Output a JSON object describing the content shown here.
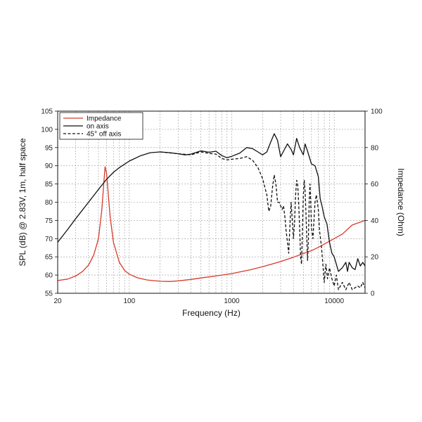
{
  "chart_data": {
    "type": "line",
    "xlabel": "Frequency (Hz)",
    "ylabel": "SPL (dB) @ 2.83V, 1m, half space",
    "y2label": "Impedance (Ohm)",
    "xscale": "log",
    "xlim": [
      20,
      20000
    ],
    "ylim": [
      55,
      105
    ],
    "y2lim": [
      0,
      100
    ],
    "x_tick_labels": [
      {
        "value": 20,
        "label": "20"
      },
      {
        "value": 100,
        "label": "100"
      },
      {
        "value": 1000,
        "label": "1000"
      },
      {
        "value": 10000,
        "label": "10000"
      }
    ],
    "y_ticks": [
      55,
      60,
      65,
      70,
      75,
      80,
      85,
      90,
      95,
      100,
      105
    ],
    "y2_ticks": [
      0,
      20,
      40,
      60,
      80,
      100
    ],
    "grid": true,
    "legend": "top-left",
    "series": [
      {
        "name": "Impedance",
        "color": "#d63a2a",
        "dash": "solid",
        "axis": "right",
        "points": [
          [
            20,
            7
          ],
          [
            25,
            7.8
          ],
          [
            30,
            9.5
          ],
          [
            35,
            12
          ],
          [
            40,
            15.5
          ],
          [
            45,
            21
          ],
          [
            50,
            30
          ],
          [
            54,
            46
          ],
          [
            56,
            58
          ],
          [
            58,
            69.5
          ],
          [
            60,
            66
          ],
          [
            62,
            56
          ],
          [
            65,
            42
          ],
          [
            70,
            28
          ],
          [
            80,
            17
          ],
          [
            90,
            12.5
          ],
          [
            100,
            10.5
          ],
          [
            120,
            8.5
          ],
          [
            150,
            7.3
          ],
          [
            200,
            6.6
          ],
          [
            250,
            6.5
          ],
          [
            300,
            6.8
          ],
          [
            400,
            7.6
          ],
          [
            500,
            8.4
          ],
          [
            700,
            9.5
          ],
          [
            1000,
            10.8
          ],
          [
            1500,
            12.8
          ],
          [
            2000,
            14.6
          ],
          [
            3000,
            17.4
          ],
          [
            4000,
            19.8
          ],
          [
            5000,
            21.8
          ],
          [
            6000,
            23.4
          ],
          [
            7000,
            25.2
          ],
          [
            8000,
            27
          ],
          [
            10000,
            30
          ],
          [
            12000,
            32.5
          ],
          [
            15000,
            37.5
          ],
          [
            20000,
            40
          ]
        ]
      },
      {
        "name": "on axis",
        "color": "#111111",
        "dash": "solid",
        "axis": "left",
        "points": [
          [
            20,
            69
          ],
          [
            25,
            72.5
          ],
          [
            30,
            75.5
          ],
          [
            40,
            80
          ],
          [
            50,
            83.5
          ],
          [
            60,
            86.3
          ],
          [
            70,
            88.2
          ],
          [
            80,
            89.5
          ],
          [
            100,
            91.3
          ],
          [
            130,
            92.8
          ],
          [
            160,
            93.6
          ],
          [
            200,
            93.8
          ],
          [
            250,
            93.6
          ],
          [
            300,
            93.3
          ],
          [
            350,
            93
          ],
          [
            400,
            93.2
          ],
          [
            500,
            94.1
          ],
          [
            550,
            93.9
          ],
          [
            600,
            93.7
          ],
          [
            700,
            94
          ],
          [
            800,
            92.8
          ],
          [
            900,
            92.2
          ],
          [
            1000,
            92.6
          ],
          [
            1200,
            93.5
          ],
          [
            1400,
            95
          ],
          [
            1600,
            94.7
          ],
          [
            1800,
            93.8
          ],
          [
            2000,
            93
          ],
          [
            2200,
            93.8
          ],
          [
            2400,
            96.5
          ],
          [
            2600,
            98.8
          ],
          [
            2800,
            97
          ],
          [
            3000,
            92.5
          ],
          [
            3200,
            94
          ],
          [
            3500,
            96
          ],
          [
            3800,
            94.5
          ],
          [
            4000,
            93
          ],
          [
            4300,
            97.5
          ],
          [
            4600,
            95
          ],
          [
            5000,
            93
          ],
          [
            5200,
            96
          ],
          [
            5500,
            94
          ],
          [
            6000,
            90.5
          ],
          [
            6500,
            90
          ],
          [
            7000,
            87
          ],
          [
            7300,
            81
          ],
          [
            7600,
            79
          ],
          [
            8000,
            76
          ],
          [
            8500,
            74
          ],
          [
            9000,
            69
          ],
          [
            9500,
            66
          ],
          [
            10000,
            65
          ],
          [
            10500,
            63
          ],
          [
            11000,
            61
          ],
          [
            12000,
            62
          ],
          [
            13000,
            63.5
          ],
          [
            13500,
            61
          ],
          [
            14000,
            63.5
          ],
          [
            15000,
            62
          ],
          [
            16000,
            61.5
          ],
          [
            17000,
            64.5
          ],
          [
            18000,
            62.5
          ],
          [
            19000,
            63.5
          ],
          [
            20000,
            62.5
          ]
        ]
      },
      {
        "name": "45° off axis",
        "color": "#111111",
        "dash": "dashed",
        "axis": "left",
        "points": [
          [
            200,
            93.8
          ],
          [
            300,
            93.3
          ],
          [
            400,
            93
          ],
          [
            500,
            93.8
          ],
          [
            600,
            93.4
          ],
          [
            700,
            93.2
          ],
          [
            800,
            92
          ],
          [
            900,
            91.6
          ],
          [
            1000,
            91.8
          ],
          [
            1200,
            92
          ],
          [
            1400,
            92.5
          ],
          [
            1600,
            91.5
          ],
          [
            1800,
            89.5
          ],
          [
            2000,
            86.5
          ],
          [
            2200,
            82
          ],
          [
            2300,
            77.5
          ],
          [
            2400,
            79
          ],
          [
            2500,
            84
          ],
          [
            2600,
            87.5
          ],
          [
            2700,
            85
          ],
          [
            2800,
            80
          ],
          [
            2900,
            80
          ],
          [
            3000,
            79
          ],
          [
            3100,
            78
          ],
          [
            3200,
            79
          ],
          [
            3300,
            76
          ],
          [
            3400,
            72
          ],
          [
            3500,
            69
          ],
          [
            3600,
            66
          ],
          [
            3700,
            74
          ],
          [
            3800,
            80
          ],
          [
            3900,
            75
          ],
          [
            4000,
            70
          ],
          [
            4100,
            74
          ],
          [
            4200,
            82
          ],
          [
            4300,
            86
          ],
          [
            4400,
            85
          ],
          [
            4500,
            80
          ],
          [
            4600,
            73
          ],
          [
            4700,
            65
          ],
          [
            4800,
            63
          ],
          [
            4900,
            72
          ],
          [
            5000,
            82
          ],
          [
            5100,
            86
          ],
          [
            5200,
            83
          ],
          [
            5300,
            77
          ],
          [
            5400,
            70
          ],
          [
            5500,
            64
          ],
          [
            5600,
            70
          ],
          [
            5700,
            80
          ],
          [
            5800,
            85
          ],
          [
            5900,
            80
          ],
          [
            6000,
            73
          ],
          [
            6200,
            70
          ],
          [
            6500,
            80
          ],
          [
            6700,
            82
          ],
          [
            7000,
            78
          ],
          [
            7200,
            72
          ],
          [
            7500,
            68
          ],
          [
            7800,
            62
          ],
          [
            8000,
            58
          ],
          [
            8300,
            63
          ],
          [
            8600,
            59
          ],
          [
            9000,
            62
          ],
          [
            9500,
            59
          ],
          [
            10000,
            57
          ],
          [
            10500,
            60
          ],
          [
            11000,
            56
          ],
          [
            12000,
            58
          ],
          [
            13000,
            56
          ],
          [
            14000,
            58
          ],
          [
            15000,
            56
          ],
          [
            17000,
            57
          ],
          [
            18000,
            56.5
          ],
          [
            19000,
            58
          ],
          [
            20000,
            56.5
          ]
        ]
      }
    ]
  }
}
